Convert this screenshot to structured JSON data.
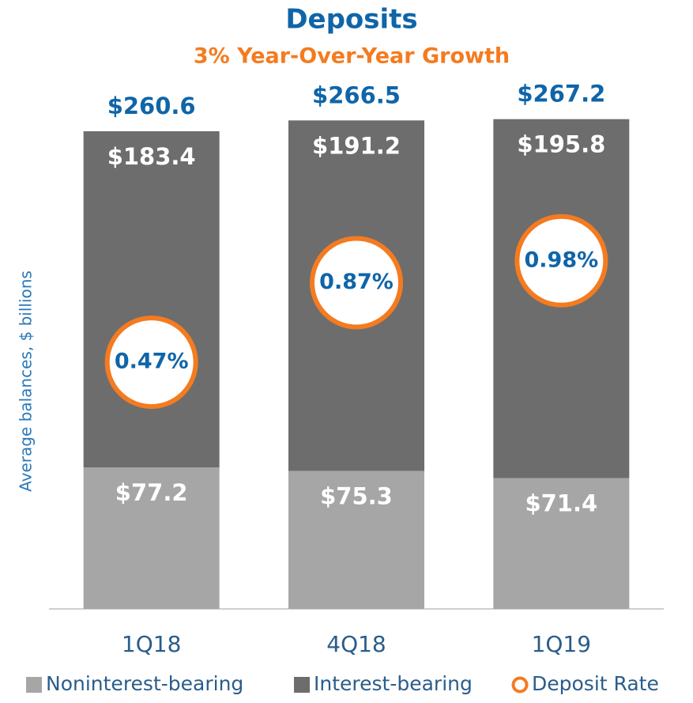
{
  "chart_data": {
    "type": "bar",
    "stacked": true,
    "title": "Deposits",
    "subtitle": "3% Year-Over-Year Growth",
    "y_label": "Average balances, $ billions",
    "categories": [
      "1Q18",
      "4Q18",
      "1Q19"
    ],
    "series": [
      {
        "name": "Noninterest-bearing",
        "color": "#a6a6a6",
        "values": [
          77.2,
          75.3,
          71.4
        ],
        "value_labels": [
          "$77.2",
          "$75.3",
          "$71.4"
        ]
      },
      {
        "name": "Interest-bearing",
        "color": "#6d6d6d",
        "values": [
          183.4,
          191.2,
          195.8
        ],
        "value_labels": [
          "$183.4",
          "$191.2",
          "$195.8"
        ]
      },
      {
        "name": "Deposit Rate",
        "color": "#f47b20",
        "axis": "y2",
        "values": [
          0.47,
          0.87,
          0.98
        ],
        "value_labels": [
          "0.47%",
          "0.87%",
          "0.98%"
        ]
      }
    ],
    "totals": {
      "values": [
        260.6,
        266.5,
        267.2
      ],
      "value_labels": [
        "$260.6",
        "$266.5",
        "$267.2"
      ]
    },
    "ylim": [
      0,
      280
    ],
    "y2lim": [
      -0.77,
      1.81
    ],
    "legend": "bottom"
  }
}
